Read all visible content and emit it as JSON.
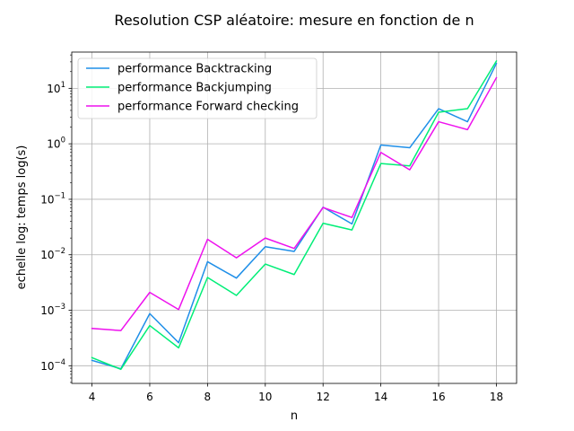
{
  "chart_data": {
    "type": "line",
    "title": "Resolution CSP aléatoire: mesure en fonction de n",
    "xlabel": "n",
    "ylabel": "echelle log: temps log(s)",
    "y_scale": "log",
    "xlim": [
      3.3,
      18.7
    ],
    "ylim": [
      4.8e-05,
      45
    ],
    "grid": true,
    "legend_position": "upper left",
    "x_ticks": [
      4,
      6,
      8,
      10,
      12,
      14,
      16,
      18
    ],
    "x_tick_labels": [
      "4",
      "6",
      "8",
      "10",
      "12",
      "14",
      "16",
      "18"
    ],
    "y_ticks": [
      0.0001,
      0.001,
      0.01,
      0.1,
      1,
      10
    ],
    "y_tick_labels": [
      {
        "base": "10",
        "exp": "−4"
      },
      {
        "base": "10",
        "exp": "−3"
      },
      {
        "base": "10",
        "exp": "−2"
      },
      {
        "base": "10",
        "exp": "−1"
      },
      {
        "base": "10",
        "exp": "0"
      },
      {
        "base": "10",
        "exp": "1"
      }
    ],
    "x": [
      4,
      5,
      6,
      7,
      8,
      9,
      10,
      11,
      12,
      13,
      14,
      15,
      16,
      17,
      18
    ],
    "series": [
      {
        "name": "performance Backtracking",
        "color": "#1f8fe8",
        "values": [
          0.000125,
          8.8e-05,
          0.00087,
          0.00026,
          0.0075,
          0.0038,
          0.014,
          0.0115,
          0.072,
          0.036,
          0.95,
          0.85,
          4.3,
          2.5,
          28
        ]
      },
      {
        "name": "performance Backjumping",
        "color": "#00ee77",
        "values": [
          0.00014,
          8.6e-05,
          0.00053,
          0.00021,
          0.0039,
          0.00185,
          0.0068,
          0.0044,
          0.037,
          0.028,
          0.44,
          0.4,
          3.7,
          4.3,
          31
        ]
      },
      {
        "name": "performance Forward checking",
        "color": "#ee11ee",
        "values": [
          0.00047,
          0.00043,
          0.0021,
          0.00103,
          0.019,
          0.0088,
          0.02,
          0.013,
          0.071,
          0.047,
          0.7,
          0.34,
          2.5,
          1.8,
          15.5
        ]
      }
    ]
  }
}
